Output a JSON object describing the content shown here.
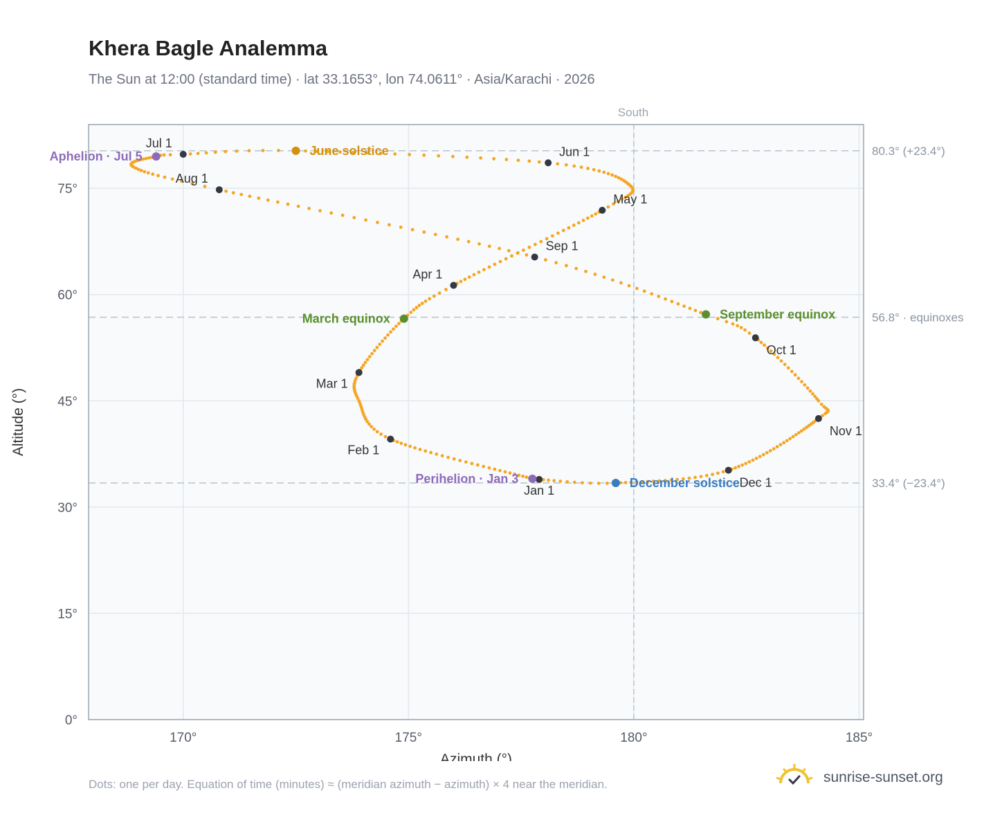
{
  "header": {
    "title": "Khera Bagle Analemma",
    "subtitle": "The Sun at 12:00 (standard time) · lat 33.1653°, lon 74.0611° · Asia/Karachi · 2026"
  },
  "footer": {
    "note": "Dots: one per day. Equation of time (minutes) ≈ (meridian azimuth − azimuth) × 4 near the meridian.",
    "brand": "sunrise-sunset.org"
  },
  "colors": {
    "curve": "#f5a623",
    "month_marker": "#333842",
    "solstice_june": "#d4900f",
    "solstice_december": "#3a7cc0",
    "equinox": "#5b8f2e",
    "apsis": "#8e6bb8",
    "grid": "#e3e8ee",
    "plot_bg": "#f8fafc",
    "reference_line": "#b8c2cc"
  },
  "chart_data": {
    "type": "scatter",
    "title": "Khera Bagle Analemma",
    "xlabel": "Azimuth (°)",
    "ylabel": "Altitude (°)",
    "xlim": [
      167.9,
      185.1
    ],
    "ylim": [
      0,
      84
    ],
    "x_ticks": [
      170,
      175,
      180,
      185
    ],
    "y_ticks": [
      0,
      15,
      30,
      45,
      60,
      75
    ],
    "x_tick_suffix": "°",
    "y_tick_suffix": "°",
    "grid": true,
    "meridian": {
      "azimuth": 180,
      "label": "South"
    },
    "reference_lines": [
      {
        "altitude": 80.3,
        "label": "80.3° (+23.4°)"
      },
      {
        "altitude": 56.8,
        "label": "56.8° · equinoxes"
      },
      {
        "altitude": 33.4,
        "label": "33.4° (−23.4°)"
      }
    ],
    "daily_points_note": "one per day",
    "analemma_keypoints": [
      {
        "day": 1,
        "az": 177.9,
        "alt": 33.9
      },
      {
        "day": 3,
        "az": 177.75,
        "alt": 34.0
      },
      {
        "day": 32,
        "az": 174.6,
        "alt": 39.6
      },
      {
        "day": 48,
        "az": 173.9,
        "alt": 45.0
      },
      {
        "day": 60,
        "az": 173.9,
        "alt": 49.0
      },
      {
        "day": 79,
        "az": 174.9,
        "alt": 56.6
      },
      {
        "day": 91,
        "az": 176.0,
        "alt": 61.3
      },
      {
        "day": 121,
        "az": 179.3,
        "alt": 71.9
      },
      {
        "day": 135,
        "az": 179.9,
        "alt": 75.5
      },
      {
        "day": 152,
        "az": 178.1,
        "alt": 78.6
      },
      {
        "day": 172,
        "az": 172.5,
        "alt": 80.3
      },
      {
        "day": 182,
        "az": 170.0,
        "alt": 79.8
      },
      {
        "day": 186,
        "az": 169.4,
        "alt": 79.5
      },
      {
        "day": 200,
        "az": 168.9,
        "alt": 78.0
      },
      {
        "day": 213,
        "az": 170.8,
        "alt": 74.8
      },
      {
        "day": 244,
        "az": 177.8,
        "alt": 65.3
      },
      {
        "day": 266,
        "az": 181.6,
        "alt": 57.2
      },
      {
        "day": 274,
        "az": 182.7,
        "alt": 53.9
      },
      {
        "day": 295,
        "az": 184.1,
        "alt": 45.0
      },
      {
        "day": 305,
        "az": 184.1,
        "alt": 42.5
      },
      {
        "day": 335,
        "az": 182.1,
        "alt": 35.2
      },
      {
        "day": 355,
        "az": 179.6,
        "alt": 33.4
      },
      {
        "day": 366,
        "az": 177.9,
        "alt": 33.9
      }
    ],
    "month_markers": [
      {
        "label": "Jan 1",
        "az": 177.9,
        "alt": 33.9,
        "anchor": "below"
      },
      {
        "label": "Feb 1",
        "az": 174.6,
        "alt": 39.6,
        "anchor": "below-left"
      },
      {
        "label": "Mar 1",
        "az": 173.9,
        "alt": 49.0,
        "anchor": "below-left"
      },
      {
        "label": "Apr 1",
        "az": 176.0,
        "alt": 61.3,
        "anchor": "above-left"
      },
      {
        "label": "May 1",
        "az": 179.3,
        "alt": 71.9,
        "anchor": "above-right"
      },
      {
        "label": "Jun 1",
        "az": 178.1,
        "alt": 78.6,
        "anchor": "above-right"
      },
      {
        "label": "Jul 1",
        "az": 170.0,
        "alt": 79.8,
        "anchor": "above-left"
      },
      {
        "label": "Aug 1",
        "az": 170.8,
        "alt": 74.8,
        "anchor": "above-left"
      },
      {
        "label": "Sep 1",
        "az": 177.8,
        "alt": 65.3,
        "anchor": "above-right"
      },
      {
        "label": "Oct 1",
        "az": 182.7,
        "alt": 53.9,
        "anchor": "below-right"
      },
      {
        "label": "Nov 1",
        "az": 184.1,
        "alt": 42.5,
        "anchor": "below-right"
      },
      {
        "label": "Dec 1",
        "az": 182.1,
        "alt": 35.2,
        "anchor": "below-right"
      }
    ],
    "events": [
      {
        "label": "June solstice",
        "az": 172.5,
        "alt": 80.3,
        "color_key": "solstice_june",
        "side": "right"
      },
      {
        "label": "December solstice",
        "az": 179.6,
        "alt": 33.4,
        "color_key": "solstice_december",
        "side": "right"
      },
      {
        "label": "March equinox",
        "az": 174.9,
        "alt": 56.6,
        "color_key": "equinox",
        "side": "left"
      },
      {
        "label": "September equinox",
        "az": 181.6,
        "alt": 57.2,
        "color_key": "equinox",
        "side": "right"
      },
      {
        "label": "Aphelion · Jul 5",
        "az": 169.4,
        "alt": 79.5,
        "color_key": "apsis",
        "side": "left"
      },
      {
        "label": "Perihelion · Jan 3",
        "az": 177.75,
        "alt": 34.0,
        "color_key": "apsis",
        "side": "left"
      }
    ]
  }
}
